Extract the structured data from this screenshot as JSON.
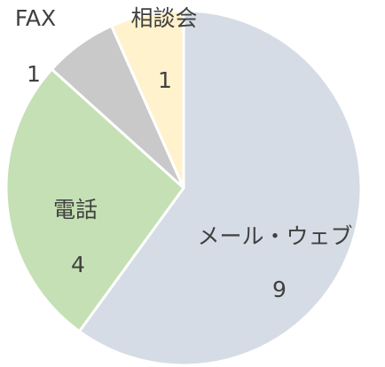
{
  "chart_data": {
    "type": "pie",
    "categories": [
      "メール・ウェブ",
      "電話",
      "FAX",
      "相談会"
    ],
    "values": [
      9,
      4,
      1,
      1
    ],
    "colors": [
      "#d6dce5",
      "#c5e0b4",
      "#c9c9c9",
      "#fff2cc"
    ]
  }
}
